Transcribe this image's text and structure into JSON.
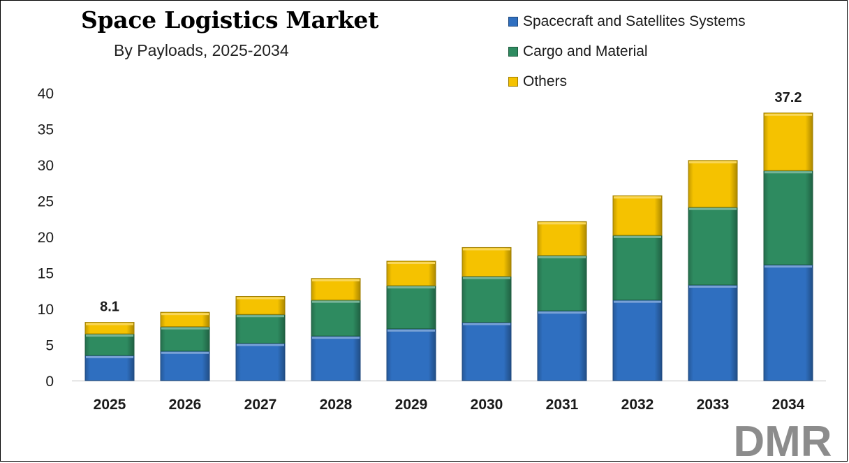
{
  "title": "Space Logistics Market",
  "subtitle": "By Payloads, 2025-2034",
  "logo_text": "DMR",
  "colors": {
    "spacecraft": "#2f6fc0",
    "cargo": "#2e8b60",
    "others": "#f5c200",
    "logo_gray": "#8c8c8c",
    "logo_red": "#c8302c"
  },
  "chart_data": {
    "type": "bar",
    "stacked": true,
    "categories": [
      "2025",
      "2026",
      "2027",
      "2028",
      "2029",
      "2030",
      "2031",
      "2032",
      "2033",
      "2034"
    ],
    "series": [
      {
        "name": "Spacecraft and Satellites Systems",
        "values": [
          3.5,
          4.1,
          5.2,
          6.2,
          7.2,
          8.1,
          9.7,
          11.2,
          13.3,
          16.1
        ]
      },
      {
        "name": "Cargo and Material",
        "values": [
          3.0,
          3.4,
          4.0,
          5.0,
          6.0,
          6.4,
          7.7,
          9.0,
          10.8,
          13.1
        ]
      },
      {
        "name": "Others",
        "values": [
          1.6,
          2.0,
          2.5,
          3.0,
          3.4,
          4.0,
          4.7,
          5.5,
          6.5,
          8.0
        ]
      }
    ],
    "data_labels": [
      {
        "category": "2025",
        "text": "8.1"
      },
      {
        "category": "2034",
        "text": "37.2"
      }
    ],
    "yticks": [
      "0",
      "5",
      "10",
      "15",
      "20",
      "25",
      "30",
      "35",
      "40"
    ],
    "ylim": [
      0,
      40
    ],
    "grid": false,
    "legend_position": "top-right"
  }
}
